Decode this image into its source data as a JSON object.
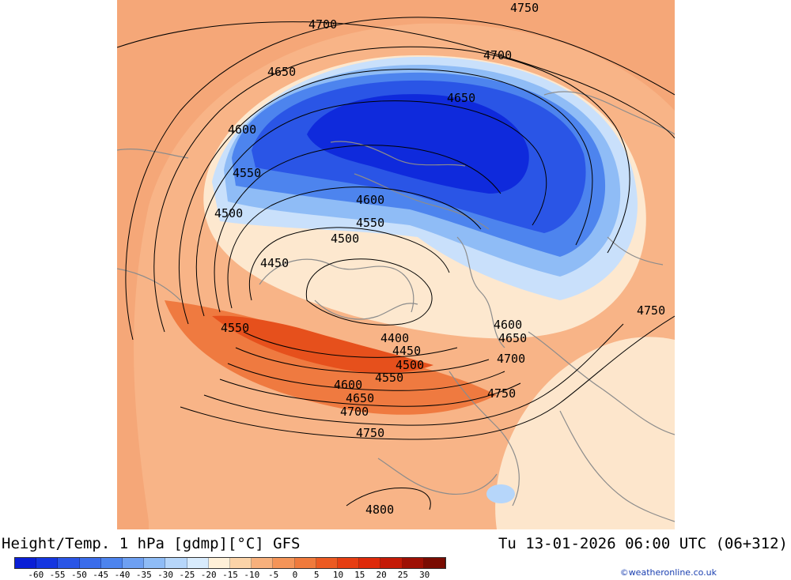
{
  "title_left": "Height/Temp. 1 hPa [gdmp][°C] GFS",
  "title_right": "Tu 13-01-2026 06:00 UTC (06+312)",
  "credit": "©weatheronline.co.uk",
  "legend": {
    "ticks": [
      "-60",
      "-55",
      "-50",
      "-45",
      "-40",
      "-35",
      "-30",
      "-25",
      "-20",
      "-15",
      "-10",
      "-5",
      "0",
      "5",
      "10",
      "15",
      "20",
      "25",
      "30"
    ],
    "colors": [
      "#0a1fd6",
      "#1536e0",
      "#2a55e6",
      "#3a6cea",
      "#4d84ee",
      "#6ea0f2",
      "#8fbcf6",
      "#b6d6fa",
      "#d8ebfc",
      "#fff0d8",
      "#fbd3a8",
      "#f7b07c",
      "#f49458",
      "#f07a3c",
      "#ec5a22",
      "#e63e12",
      "#de2a0a",
      "#c41a06",
      "#9e1004",
      "#7a0c02"
    ]
  },
  "contours": {
    "labels": [
      "4700",
      "4750",
      "4700",
      "4650",
      "4650",
      "4600",
      "4550",
      "4600",
      "4500",
      "4550",
      "4500",
      "4450",
      "4750",
      "4600",
      "4650",
      "4550",
      "4400",
      "4450",
      "4500",
      "4700",
      "4550",
      "4600",
      "4650",
      "4750",
      "4700",
      "4750",
      "4800"
    ]
  }
}
